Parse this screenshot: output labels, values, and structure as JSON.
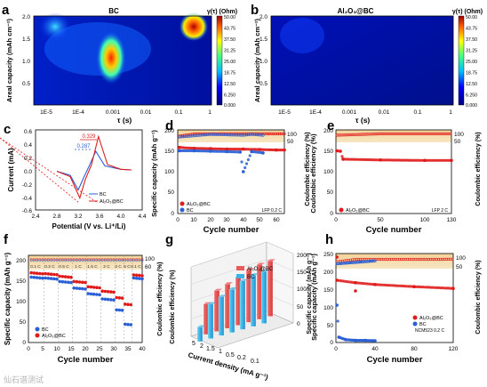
{
  "panels": {
    "a": {
      "letter": "a",
      "title": "BC",
      "ylabel": "Areal capacity (mAh cm⁻²)",
      "xlabel": "τ (s)",
      "yticks": [
        "2.0",
        "1.5",
        "1.0",
        "0.5"
      ],
      "xticks": [
        "1E-5",
        "1E-4",
        "0.001",
        "0.01",
        "0.1",
        "1"
      ],
      "cbar_title": "γ(τ) (Ohm)"
    },
    "b": {
      "letter": "b",
      "title": "Al₂O₃@BC",
      "ylabel": "Areal capacity (mAh cm⁻²)",
      "xlabel": "τ (s)",
      "yticks": [
        "2.0",
        "1.5",
        "1.0",
        "0.5"
      ],
      "xticks": [
        "1E-5",
        "1E-4",
        "0.001",
        "0.01",
        "0.1",
        "1"
      ],
      "cbar_title": "γ(τ) (Ohm)"
    },
    "c": {
      "letter": "c",
      "xlabel": "Potential (V vs. Li⁺/Li)",
      "ylabel": "Current (mA)"
    },
    "d": {
      "letter": "d",
      "xlabel": "Cycle number",
      "ylabel": "Specific capacity (mAh g⁻¹)",
      "ylabel2": "Coulombic efficiency (%)",
      "note": "LFP 0.2 C"
    },
    "e": {
      "letter": "e",
      "xlabel": "Cycle number",
      "ylabel": "Coulombic efficiency (%)",
      "ylabel2": "Coulombic efficiency (%)",
      "note": "LFP 2 C"
    },
    "f": {
      "letter": "f",
      "xlabel": "Cycle number",
      "ylabel": "Specific capacity (mAh g⁻¹)",
      "ylabel2": "Coulombic efficiency (%)",
      "rates": [
        "0.1 C",
        "0.2 C",
        "0.5 C",
        "1 C",
        "1.5 C",
        "2 C",
        "3 C",
        "5 C",
        "0.1 C"
      ]
    },
    "g": {
      "letter": "g",
      "xlabel": "Current density (mA g⁻¹)",
      "ylabel": "Coulombic efficiency (%)",
      "zlabel": "Specific capacity (mAh g⁻¹)"
    },
    "h": {
      "letter": "h",
      "xlabel": "Cycle number",
      "ylabel": "Specific capacity (mAh g⁻¹)",
      "ylabel2": "Coulombic efficiency (%)",
      "note": "NCM523 0.2 C"
    }
  },
  "colorbar_ticks": [
    "50.00",
    "43.75",
    "37.50",
    "31.25",
    "25.00",
    "18.75",
    "12.50",
    "6.250",
    "0.000"
  ],
  "legend": {
    "bc": "BC",
    "al": "Al₂O₃@BC"
  },
  "watermark": "仙石谱测试",
  "chart_data": [
    {
      "panel": "a",
      "type": "heatmap",
      "title": "BC",
      "xlabel": "τ (s)",
      "ylabel": "Areal capacity (mAh cm⁻²)",
      "xscale": "log",
      "xlim": [
        5e-06,
        1
      ],
      "ylim": [
        0,
        2.0
      ],
      "colorbar": {
        "label": "γ(τ) (Ohm)",
        "range": [
          0,
          50
        ]
      },
      "peaks": [
        {
          "tau": 0.001,
          "cap": 1.0,
          "value": 45
        },
        {
          "tau": 0.5,
          "cap": 1.9,
          "value": 50
        },
        {
          "tau": 1e-05,
          "cap": 1.8,
          "value": 15
        }
      ]
    },
    {
      "panel": "b",
      "type": "heatmap",
      "title": "Al₂O₃@BC",
      "xlabel": "τ (s)",
      "ylabel": "Areal capacity (mAh cm⁻²)",
      "xscale": "log",
      "xlim": [
        5e-06,
        1
      ],
      "ylim": [
        0,
        2.0
      ],
      "colorbar": {
        "label": "γ(τ) (Ohm)",
        "range": [
          0,
          50
        ]
      },
      "peaks": [
        {
          "tau": 5e-05,
          "cap": 1.5,
          "value": 4
        }
      ]
    },
    {
      "panel": "c",
      "type": "line",
      "xlabel": "Potential (V vs. Li⁺/Li)",
      "ylabel": "Current (mA)",
      "xlim": [
        2.4,
        4.4
      ],
      "ylim": [
        -0.6,
        0.6
      ],
      "xticks": [
        "2.4",
        "2.8",
        "3.2",
        "3.6",
        "4.0",
        "4.4"
      ],
      "yticks": [
        "0.6",
        "0.4",
        "0.2",
        "0.0",
        "-0.2",
        "-0.4",
        "-0.6"
      ],
      "annotations": [
        "0.329",
        "0.287"
      ],
      "series": [
        {
          "name": "BC",
          "color": "#2a5fd6",
          "points": [
            [
              2.8,
              -0.02
            ],
            [
              3.05,
              -0.08
            ],
            [
              3.2,
              -0.3
            ],
            [
              3.3,
              -0.12
            ],
            [
              3.4,
              0.05
            ],
            [
              3.53,
              0.28
            ],
            [
              3.7,
              0.06
            ],
            [
              4.0,
              0.01
            ],
            [
              4.2,
              0.0
            ]
          ]
        },
        {
          "name": "Al₂O₃@BC",
          "color": "#e01b1b",
          "points": [
            [
              2.8,
              -0.02
            ],
            [
              3.05,
              -0.1
            ],
            [
              3.23,
              -0.42
            ],
            [
              3.33,
              -0.15
            ],
            [
              3.45,
              0.08
            ],
            [
              3.58,
              0.5
            ],
            [
              3.75,
              0.08
            ],
            [
              4.0,
              0.01
            ],
            [
              4.2,
              0.0
            ]
          ]
        }
      ]
    },
    {
      "panel": "d",
      "type": "scatter",
      "xlabel": "Cycle number",
      "ylabel": "Specific capacity (mAh g⁻¹)",
      "xlim": [
        0,
        65
      ],
      "ylim": [
        0,
        200
      ],
      "y2lim": [
        0,
        100
      ],
      "xticks": [
        "0",
        "10",
        "20",
        "30",
        "40",
        "50",
        "60"
      ],
      "yticks": [
        "0",
        "50",
        "100",
        "150",
        "200"
      ],
      "series": [
        {
          "name": "Al₂O₃@BC",
          "color": "#e01b1b",
          "capacity": [
            [
              1,
              158
            ],
            [
              10,
              156
            ],
            [
              20,
              155
            ],
            [
              30,
              154
            ],
            [
              40,
              154
            ],
            [
              50,
              153
            ],
            [
              60,
              152
            ],
            [
              65,
              152
            ]
          ],
          "ce": [
            [
              1,
              97
            ],
            [
              10,
              99.5
            ],
            [
              40,
              99.6
            ],
            [
              65,
              99.6
            ]
          ]
        },
        {
          "name": "BC",
          "color": "#2a5fd6",
          "capacity": [
            [
              1,
              150
            ],
            [
              10,
              150
            ],
            [
              20,
              149
            ],
            [
              30,
              148
            ],
            [
              38,
              147
            ],
            [
              40,
              100
            ],
            [
              45,
              148
            ],
            [
              52,
              145
            ]
          ],
          "ce": [
            [
              1,
              96
            ],
            [
              20,
              99
            ],
            [
              40,
              98
            ],
            [
              45,
              99
            ],
            [
              52,
              98
            ]
          ]
        }
      ]
    },
    {
      "panel": "e",
      "type": "scatter",
      "xlabel": "Cycle number",
      "ylabel": "Coulombic efficiency (%)",
      "xlim": [
        0,
        130
      ],
      "ylim": [
        0,
        200
      ],
      "y2lim": [
        0,
        100
      ],
      "xticks": [
        "0",
        "50",
        "100",
        "130"
      ],
      "yticks": [
        "0",
        "50",
        "100",
        "150",
        "200"
      ],
      "series": [
        {
          "name": "Al₂O₃@BC",
          "color": "#e01b1b",
          "capacity": [
            [
              1,
              150
            ],
            [
              5,
              149
            ],
            [
              8,
              130
            ],
            [
              50,
              128
            ],
            [
              100,
              127
            ],
            [
              130,
              127
            ]
          ],
          "ce": [
            [
              1,
              98
            ],
            [
              50,
              99.6
            ],
            [
              130,
              99.6
            ]
          ]
        }
      ]
    },
    {
      "panel": "f",
      "type": "scatter",
      "xlabel": "Cycle number",
      "ylabel": "Specific capacity (mAh g⁻¹)",
      "xlim": [
        0,
        40
      ],
      "ylim": [
        0,
        200
      ],
      "y2lim": [
        0,
        100
      ],
      "xticks": [
        "0",
        "5",
        "10",
        "15",
        "20",
        "25",
        "30",
        "35",
        "40"
      ],
      "yticks": [
        "0",
        "50",
        "100",
        "150",
        "200"
      ],
      "rates": [
        "0.1 C",
        "0.2 C",
        "0.5 C",
        "1 C",
        "1.5 C",
        "2 C",
        "3 C",
        "5 C",
        "0.1 C"
      ],
      "series": [
        {
          "name": "Al₂O₃@BC",
          "color": "#e01b1b",
          "values": [
            160,
            158,
            152,
            140,
            128,
            118,
            103,
            88,
            155
          ]
        },
        {
          "name": "BC",
          "color": "#2a5fd6",
          "values": [
            150,
            148,
            140,
            125,
            112,
            100,
            75,
            42,
            148
          ]
        }
      ]
    },
    {
      "panel": "g",
      "type": "bar",
      "xlabel": "Current density (mA g⁻¹)",
      "zlabel": "Specific capacity (mAh g⁻¹)",
      "categories": [
        "0.1",
        "0.2",
        "0.5",
        "1",
        "1.5",
        "2",
        "5"
      ],
      "zticks": [
        "0",
        "50",
        "100",
        "150",
        "200"
      ],
      "series": [
        {
          "name": "Al₂O₃@BC",
          "color": "#ea5a5a",
          "values": [
            160,
            158,
            152,
            140,
            128,
            118,
            88
          ]
        },
        {
          "name": "BC",
          "color": "#37b3e6",
          "values": [
            150,
            148,
            140,
            125,
            112,
            100,
            42
          ]
        }
      ]
    },
    {
      "panel": "h",
      "type": "scatter",
      "xlabel": "Cycle number",
      "ylabel": "Specific capacity (mAh g⁻¹)",
      "xlim": [
        0,
        120
      ],
      "ylim": [
        0,
        250
      ],
      "y2lim": [
        0,
        100
      ],
      "xticks": [
        "0",
        "40",
        "80",
        "120"
      ],
      "yticks": [
        "0",
        "50",
        "100",
        "150",
        "200",
        "250"
      ],
      "series": [
        {
          "name": "Al₂O₃@BC",
          "color": "#e01b1b",
          "capacity": [
            [
              1,
              175
            ],
            [
              20,
              168
            ],
            [
              40,
              163
            ],
            [
              80,
              157
            ],
            [
              120,
              152
            ]
          ],
          "outliers": [
            [
              1,
              240
            ],
            [
              20,
              145
            ]
          ],
          "ce": [
            [
              1,
              97
            ],
            [
              20,
              99.5
            ],
            [
              120,
              99.6
            ]
          ]
        },
        {
          "name": "BC",
          "color": "#2a5fd6",
          "capacity": [
            [
              1,
              105
            ],
            [
              3,
              15
            ],
            [
              10,
              8
            ],
            [
              20,
              6
            ],
            [
              30,
              6
            ],
            [
              40,
              5
            ]
          ],
          "ce": [
            [
              1,
              95
            ],
            [
              40,
              98
            ]
          ]
        }
      ]
    }
  ]
}
